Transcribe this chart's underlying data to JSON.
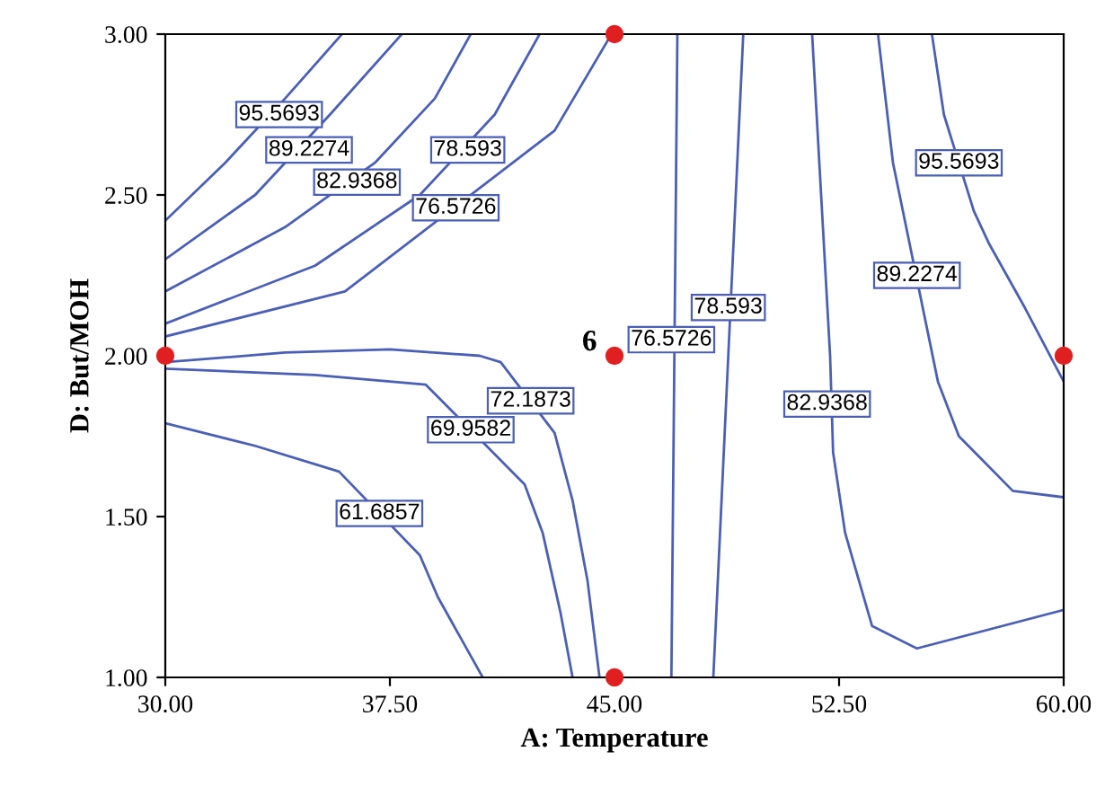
{
  "chart_data": {
    "type": "line",
    "xlabel": "A: Temperature",
    "ylabel": "D: But/MOH",
    "xlim": [
      30,
      60
    ],
    "ylim": [
      1,
      3
    ],
    "xticks": [
      {
        "value": 30,
        "label": "30.00"
      },
      {
        "value": 37.5,
        "label": "37.50"
      },
      {
        "value": 45,
        "label": "45.00"
      },
      {
        "value": 52.5,
        "label": "52.50"
      },
      {
        "value": 60,
        "label": "60.00"
      }
    ],
    "yticks": [
      {
        "value": 1,
        "label": "1.00"
      },
      {
        "value": 1.5,
        "label": "1.50"
      },
      {
        "value": 2,
        "label": "2.00"
      },
      {
        "value": 2.5,
        "label": "2.50"
      },
      {
        "value": 3,
        "label": "3.00"
      }
    ],
    "grid": false,
    "series": [
      {
        "type": "line",
        "color": "#4a5fb5",
        "x": [
          30,
          32,
          34,
          35.9
        ],
        "values": [
          2.42,
          2.6,
          2.8,
          3.0
        ]
      },
      {
        "type": "line",
        "color": "#4a5fb5",
        "x": [
          30,
          33,
          35.5,
          37.9
        ],
        "values": [
          2.3,
          2.5,
          2.75,
          3.0
        ]
      },
      {
        "type": "line",
        "color": "#4a5fb5",
        "x": [
          30,
          34,
          37,
          39,
          40.2
        ],
        "values": [
          2.2,
          2.4,
          2.6,
          2.8,
          3.0
        ]
      },
      {
        "type": "line",
        "color": "#4a5fb5",
        "x": [
          30,
          35,
          38.5,
          41,
          42.5
        ],
        "values": [
          2.1,
          2.28,
          2.5,
          2.75,
          3.0
        ]
      },
      {
        "type": "line",
        "color": "#4a5fb5",
        "x": [
          30,
          36,
          43,
          44.9
        ],
        "values": [
          2.06,
          2.2,
          2.7,
          3.0
        ]
      },
      {
        "type": "line",
        "color": "#4a5fb5",
        "x": [
          47.1,
          47.0,
          46.9
        ],
        "values": [
          3.0,
          2.0,
          1.0
        ]
      },
      {
        "type": "line",
        "color": "#4a5fb5",
        "x": [
          49.3,
          48.8,
          48.3
        ],
        "values": [
          3.0,
          2.0,
          1.0
        ]
      },
      {
        "type": "line",
        "color": "#4a5fb5",
        "x": [
          51.6,
          51.9,
          52.2,
          52.3,
          52.7,
          53.6,
          55.1,
          60
        ],
        "values": [
          3.0,
          2.5,
          2.0,
          1.7,
          1.45,
          1.16,
          1.09,
          1.21
        ]
      },
      {
        "color": "#4a5fb5",
        "x": [
          53.8,
          54.3,
          55.8,
          56.5,
          58.3,
          60
        ],
        "values": [
          3.0,
          2.6,
          1.92,
          1.75,
          1.58,
          1.56
        ]
      },
      {
        "type": "line",
        "color": "#4a5fb5",
        "x": [
          55.6,
          56.0,
          57.0,
          57.5,
          58.7,
          60
        ],
        "values": [
          3.0,
          2.75,
          2.45,
          2.35,
          2.15,
          1.92
        ]
      },
      {
        "type": "line",
        "color": "#4a5fb5",
        "x": [
          30,
          34,
          37.5,
          40.5,
          41.2,
          43.0,
          43.6,
          44.1,
          44.5
        ],
        "values": [
          1.98,
          2.01,
          2.02,
          2.0,
          1.98,
          1.76,
          1.55,
          1.3,
          1.0
        ]
      },
      {
        "type": "line",
        "color": "#4a5fb5",
        "x": [
          30,
          35,
          38.7,
          42,
          42.6,
          43.2,
          43.6
        ],
        "values": [
          1.96,
          1.94,
          1.91,
          1.6,
          1.45,
          1.2,
          1.0
        ]
      },
      {
        "type": "line",
        "color": "#4a5fb5",
        "x": [
          30,
          33,
          35.8,
          38.5,
          39.1,
          40.6
        ],
        "values": [
          1.79,
          1.72,
          1.64,
          1.38,
          1.25,
          1.0
        ]
      },
      {
        "type": "scatter",
        "color": "#e02020",
        "marker": "circle",
        "x": [
          30,
          45,
          45,
          60,
          45
        ],
        "values": [
          2,
          3,
          2,
          2,
          1
        ]
      }
    ],
    "annotations": [
      {
        "text": "95.5693",
        "x": 33.8,
        "y": 2.75
      },
      {
        "text": "89.2274",
        "x": 34.8,
        "y": 2.64
      },
      {
        "text": "82.9368",
        "x": 36.4,
        "y": 2.54
      },
      {
        "text": "78.593",
        "x": 40.1,
        "y": 2.64
      },
      {
        "text": "76.5726",
        "x": 39.7,
        "y": 2.46
      },
      {
        "text": "95.5693",
        "x": 56.5,
        "y": 2.6
      },
      {
        "text": "89.2274",
        "x": 55.1,
        "y": 2.25
      },
      {
        "text": "78.593",
        "x": 48.8,
        "y": 2.15
      },
      {
        "text": "76.5726",
        "x": 46.9,
        "y": 2.05
      },
      {
        "text": "82.9368",
        "x": 52.1,
        "y": 1.85
      },
      {
        "text": "72.1873",
        "x": 42.2,
        "y": 1.86
      },
      {
        "text": "69.9582",
        "x": 40.2,
        "y": 1.77
      },
      {
        "text": "61.6857",
        "x": 37.15,
        "y": 1.51
      },
      {
        "text": "6",
        "x": 45,
        "y": 2
      }
    ]
  }
}
